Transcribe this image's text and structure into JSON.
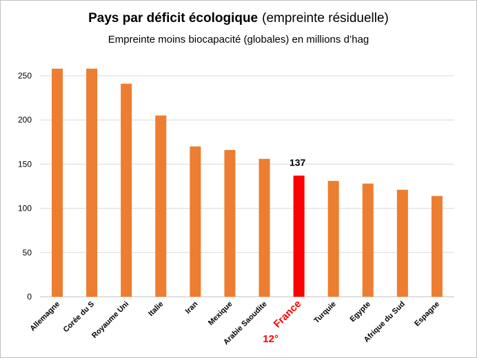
{
  "chart_data": {
    "type": "bar",
    "title": "Pays par déficit écologique",
    "title_suffix": "(empreinte résiduelle)",
    "subtitle": "Empreinte moins biocapacité (globales) en millions d’hag",
    "categories": [
      "Allemagne",
      "Corée du S",
      "Royaume Uni",
      "Italie",
      "Iran",
      "Mexique",
      "Arabie Saoudite",
      "France",
      "Turquie",
      "Egypte",
      "Afrique du Sud",
      "Espagne"
    ],
    "values": [
      258,
      258,
      241,
      205,
      170,
      166,
      156,
      137,
      131,
      128,
      121,
      114
    ],
    "ylim": [
      0,
      250
    ],
    "yticks": [
      0,
      50,
      100,
      150,
      200,
      250
    ],
    "grid": true,
    "bar_color": "#ED7D31",
    "highlight": {
      "category": "France",
      "color": "#FF0000",
      "value_label": "137",
      "rank_label": "12°"
    }
  }
}
